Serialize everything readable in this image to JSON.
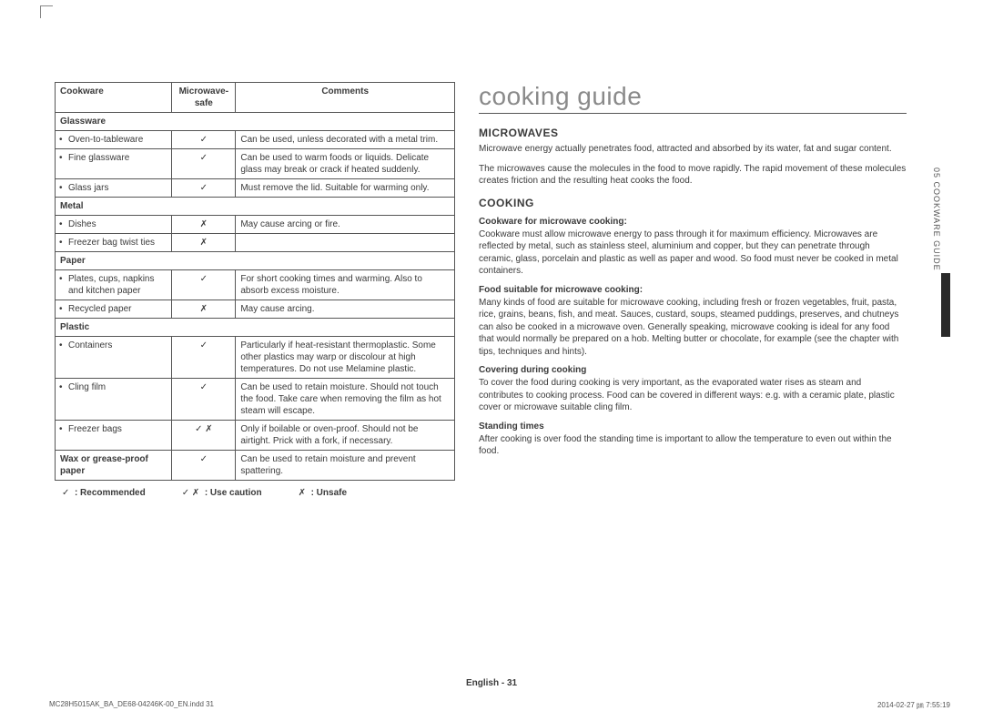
{
  "page_title": "cooking guide",
  "section_tab": "05  COOKWARE GUIDE",
  "table": {
    "headers": [
      "Cookware",
      "Microwave-safe",
      "Comments"
    ],
    "rows": [
      {
        "type": "cat",
        "label": "Glassware"
      },
      {
        "type": "item",
        "label": "Oven-to-tableware",
        "safe": "✓",
        "comment": "Can be used, unless decorated with a metal trim."
      },
      {
        "type": "item",
        "label": "Fine glassware",
        "safe": "✓",
        "comment": "Can be used to warm foods or liquids. Delicate glass may break or crack if heated suddenly."
      },
      {
        "type": "item",
        "label": "Glass jars",
        "safe": "✓",
        "comment": "Must remove the lid. Suitable for warming only."
      },
      {
        "type": "cat",
        "label": "Metal"
      },
      {
        "type": "item",
        "label": "Dishes",
        "safe": "✗",
        "comment": "May cause arcing or fire."
      },
      {
        "type": "item",
        "label": "Freezer bag twist ties",
        "safe": "✗",
        "comment": ""
      },
      {
        "type": "cat",
        "label": "Paper"
      },
      {
        "type": "item",
        "label": "Plates, cups, napkins and kitchen paper",
        "safe": "✓",
        "comment": "For short cooking times and warming. Also to absorb excess moisture."
      },
      {
        "type": "item",
        "label": "Recycled paper",
        "safe": "✗",
        "comment": "May cause arcing."
      },
      {
        "type": "cat",
        "label": "Plastic"
      },
      {
        "type": "item",
        "label": "Containers",
        "safe": "✓",
        "comment": "Particularly if heat-resistant thermoplastic. Some other plastics may warp or discolour at high temperatures. Do not use Melamine plastic."
      },
      {
        "type": "item",
        "label": "Cling film",
        "safe": "✓",
        "comment": "Can be used to retain moisture. Should not touch the food. Take care when removing the film as hot steam will escape."
      },
      {
        "type": "item",
        "label": "Freezer bags",
        "safe": "✓ ✗",
        "comment": "Only if boilable or oven-proof. Should not be airtight. Prick with a fork, if necessary."
      },
      {
        "type": "item_bold",
        "label": "Wax or grease-proof paper",
        "safe": "✓",
        "comment": "Can be used to retain moisture and prevent spattering."
      }
    ]
  },
  "legend": [
    {
      "sym": "✓",
      "text": ": Recommended"
    },
    {
      "sym": "✓ ✗",
      "text": ": Use caution"
    },
    {
      "sym": "✗",
      "text": ": Unsafe"
    }
  ],
  "right": {
    "h_microwaves": "MICROWAVES",
    "p_micro1": "Microwave energy actually penetrates food, attracted and absorbed by its water, fat and sugar content.",
    "p_micro2": "The microwaves cause the molecules in the food to move rapidly. The rapid movement of these molecules creates friction and the resulting heat cooks the food.",
    "h_cooking": "COOKING",
    "sub1": "Cookware for microwave cooking:",
    "p1": "Cookware must allow microwave energy to pass through it for maximum efficiency. Microwaves are reflected by metal, such as stainless steel, aluminium and copper, but they can penetrate through ceramic, glass, porcelain and plastic as well as paper and wood. So food must never be cooked in metal containers.",
    "sub2": "Food suitable for microwave cooking:",
    "p2": "Many kinds of food are suitable for microwave cooking, including fresh or frozen vegetables, fruit, pasta, rice, grains, beans, fish, and meat. Sauces, custard, soups, steamed puddings, preserves, and chutneys can also be cooked in a microwave oven. Generally speaking, microwave cooking is ideal for any food that would normally be prepared on a hob. Melting butter or chocolate, for example (see the chapter with tips, techniques and hints).",
    "sub3": "Covering during cooking",
    "p3": "To cover the food during cooking is very important, as the evaporated water rises as steam and contributes to cooking process. Food can be covered in different ways: e.g. with a ceramic plate, plastic cover or microwave suitable cling film.",
    "sub4": "Standing times",
    "p4": "After cooking is over food the standing time is important to allow the temperature to even out within the food."
  },
  "footer_page": "English - 31",
  "meta_left": "MC28H5015AK_BA_DE68-04246K-00_EN.indd   31",
  "meta_right": "2014-02-27   ㏘ 7:55:19"
}
